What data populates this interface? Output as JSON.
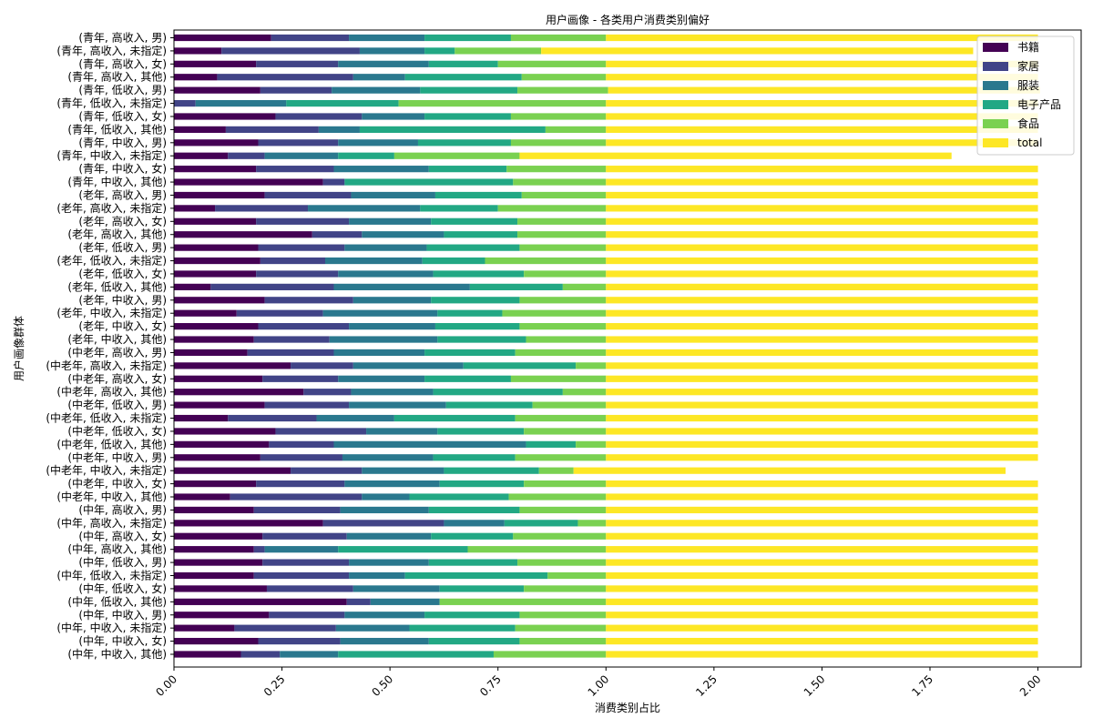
{
  "chart_data": {
    "type": "bar",
    "orientation": "horizontal",
    "stacked": true,
    "title": "用户画像 - 各类用户消费类别偏好",
    "xlabel": "消费类别占比",
    "ylabel": "用户画像群体",
    "xlim": [
      0,
      2.1
    ],
    "xticks": [
      "0.00",
      "0.25",
      "0.50",
      "0.75",
      "1.00",
      "1.25",
      "1.50",
      "1.75",
      "2.00"
    ],
    "xtick_values": [
      0,
      0.25,
      0.5,
      0.75,
      1.0,
      1.25,
      1.5,
      1.75,
      2.0
    ],
    "legend_position": "top-right",
    "categories": [
      "(青年, 高收入, 男)",
      "(青年, 高收入, 未指定)",
      "(青年, 高收入, 女)",
      "(青年, 高收入, 其他)",
      "(青年, 低收入, 男)",
      "(青年, 低收入, 未指定)",
      "(青年, 低收入, 女)",
      "(青年, 低收入, 其他)",
      "(青年, 中收入, 男)",
      "(青年, 中收入, 未指定)",
      "(青年, 中收入, 女)",
      "(青年, 中收入, 其他)",
      "(老年, 高收入, 男)",
      "(老年, 高收入, 未指定)",
      "(老年, 高收入, 女)",
      "(老年, 高收入, 其他)",
      "(老年, 低收入, 男)",
      "(老年, 低收入, 未指定)",
      "(老年, 低收入, 女)",
      "(老年, 低收入, 其他)",
      "(老年, 中收入, 男)",
      "(老年, 中收入, 未指定)",
      "(老年, 中收入, 女)",
      "(老年, 中收入, 其他)",
      "(中老年, 高收入, 男)",
      "(中老年, 高收入, 未指定)",
      "(中老年, 高收入, 女)",
      "(中老年, 高收入, 其他)",
      "(中老年, 低收入, 男)",
      "(中老年, 低收入, 未指定)",
      "(中老年, 低收入, 女)",
      "(中老年, 低收入, 其他)",
      "(中老年, 中收入, 男)",
      "(中老年, 中收入, 未指定)",
      "(中老年, 中收入, 女)",
      "(中老年, 中收入, 其他)",
      "(中年, 高收入, 男)",
      "(中年, 高收入, 未指定)",
      "(中年, 高收入, 女)",
      "(中年, 高收入, 其他)",
      "(中年, 低收入, 男)",
      "(中年, 低收入, 未指定)",
      "(中年, 低收入, 女)",
      "(中年, 低收入, 其他)",
      "(中年, 中收入, 男)",
      "(中年, 中收入, 未指定)",
      "(中年, 中收入, 女)",
      "(中年, 中收入, 其他)"
    ],
    "series": [
      {
        "name": "书籍",
        "color": "#440154",
        "values": [
          0.225,
          0.11,
          0.19,
          0.1,
          0.2,
          0.0,
          0.235,
          0.12,
          0.195,
          0.125,
          0.19,
          0.345,
          0.21,
          0.095,
          0.19,
          0.32,
          0.195,
          0.2,
          0.19,
          0.085,
          0.21,
          0.145,
          0.195,
          0.185,
          0.17,
          0.27,
          0.205,
          0.3,
          0.21,
          0.125,
          0.235,
          0.22,
          0.2,
          0.27,
          0.19,
          0.13,
          0.185,
          0.345,
          0.205,
          0.185,
          0.205,
          0.185,
          0.215,
          0.4,
          0.22,
          0.14,
          0.195,
          0.155
        ]
      },
      {
        "name": "家居",
        "color": "#414487",
        "values": [
          0.18,
          0.32,
          0.19,
          0.315,
          0.165,
          0.05,
          0.2,
          0.215,
          0.185,
          0.085,
          0.18,
          0.05,
          0.2,
          0.215,
          0.215,
          0.115,
          0.2,
          0.15,
          0.19,
          0.285,
          0.205,
          0.2,
          0.21,
          0.175,
          0.2,
          0.145,
          0.175,
          0.11,
          0.195,
          0.205,
          0.21,
          0.15,
          0.19,
          0.165,
          0.205,
          0.305,
          0.2,
          0.28,
          0.195,
          0.025,
          0.2,
          0.22,
          0.2,
          0.055,
          0.175,
          0.235,
          0.19,
          0.09
        ]
      },
      {
        "name": "服装",
        "color": "#2a788e",
        "values": [
          0.175,
          0.15,
          0.21,
          0.12,
          0.205,
          0.21,
          0.145,
          0.095,
          0.185,
          0.17,
          0.22,
          0.0,
          0.195,
          0.26,
          0.19,
          0.19,
          0.19,
          0.225,
          0.22,
          0.315,
          0.18,
          0.265,
          0.2,
          0.25,
          0.21,
          0.255,
          0.2,
          0.19,
          0.225,
          0.18,
          0.165,
          0.445,
          0.21,
          0.19,
          0.22,
          0.11,
          0.205,
          0.14,
          0.195,
          0.17,
          0.185,
          0.13,
          0.2,
          0.16,
          0.185,
          0.17,
          0.205,
          0.135
        ]
      },
      {
        "name": "电子产品",
        "color": "#22a884",
        "values": [
          0.2,
          0.07,
          0.16,
          0.27,
          0.225,
          0.26,
          0.2,
          0.43,
          0.215,
          0.13,
          0.18,
          0.39,
          0.2,
          0.18,
          0.2,
          0.17,
          0.215,
          0.145,
          0.21,
          0.215,
          0.205,
          0.15,
          0.195,
          0.205,
          0.21,
          0.26,
          0.2,
          0.3,
          0.2,
          0.28,
          0.2,
          0.115,
          0.19,
          0.22,
          0.195,
          0.23,
          0.21,
          0.17,
          0.19,
          0.3,
          0.205,
          0.33,
          0.195,
          0.0,
          0.22,
          0.245,
          0.21,
          0.36
        ]
      },
      {
        "name": "食品",
        "color": "#7ad151",
        "values": [
          0.22,
          0.2,
          0.25,
          0.195,
          0.21,
          0.48,
          0.22,
          0.14,
          0.22,
          0.29,
          0.23,
          0.215,
          0.195,
          0.25,
          0.205,
          0.205,
          0.2,
          0.28,
          0.19,
          0.1,
          0.2,
          0.24,
          0.2,
          0.185,
          0.21,
          0.07,
          0.22,
          0.1,
          0.17,
          0.21,
          0.19,
          0.07,
          0.21,
          0.08,
          0.19,
          0.225,
          0.2,
          0.065,
          0.215,
          0.32,
          0.205,
          0.135,
          0.19,
          0.385,
          0.2,
          0.21,
          0.2,
          0.26
        ]
      },
      {
        "name": "total",
        "color": "#fde725",
        "values": [
          1,
          1,
          1,
          1,
          1,
          1,
          1,
          1,
          1,
          1,
          1,
          1,
          1,
          1,
          1,
          1,
          1,
          1,
          1,
          1,
          1,
          1,
          1,
          1,
          1,
          1,
          1,
          1,
          1,
          1,
          1,
          1,
          1,
          1,
          1,
          1,
          1,
          1,
          1,
          1,
          1,
          1,
          1,
          1,
          1,
          1,
          1,
          1
        ]
      }
    ]
  }
}
